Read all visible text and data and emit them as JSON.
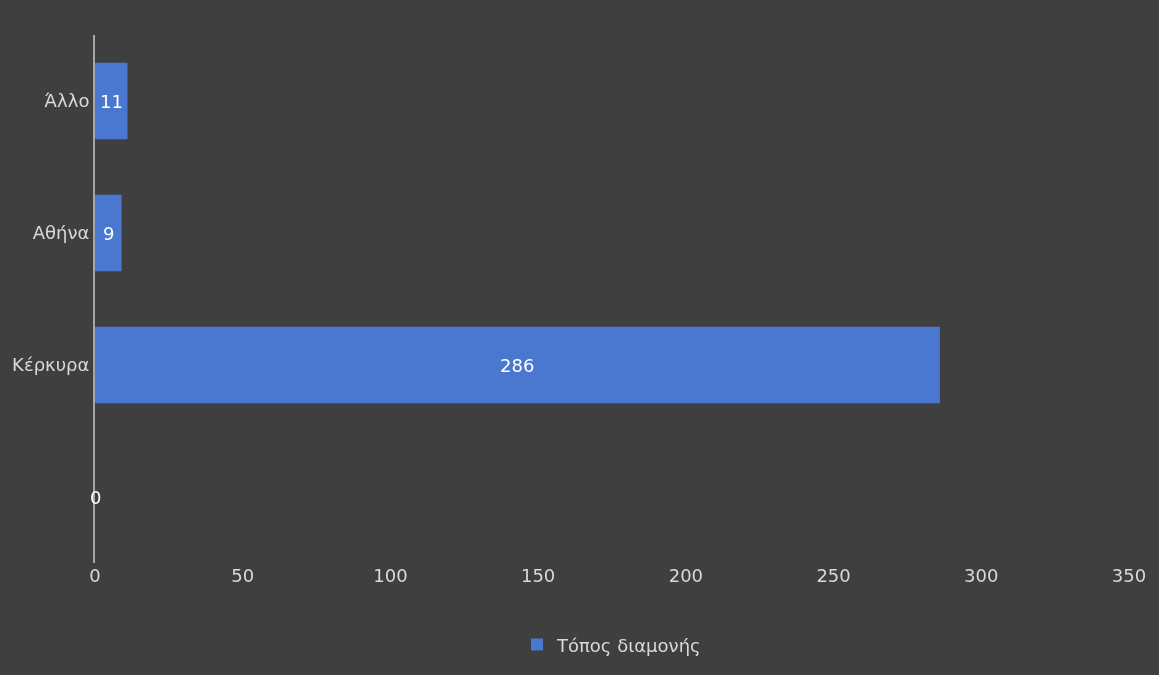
{
  "chart_data": {
    "type": "bar",
    "orientation": "horizontal",
    "categories": [
      "Άλλο",
      "Αθήνα",
      "Κέρκυρα",
      null
    ],
    "series": [
      {
        "name": "Τόπος διαμονής",
        "color": "#4a78d0",
        "values": [
          11,
          9,
          286,
          0
        ]
      }
    ],
    "xlim": [
      0,
      350
    ],
    "xticks": [
      0,
      50,
      100,
      150,
      200,
      250,
      300,
      350
    ],
    "data_labels": true,
    "grid": false,
    "legend": "bottom"
  }
}
